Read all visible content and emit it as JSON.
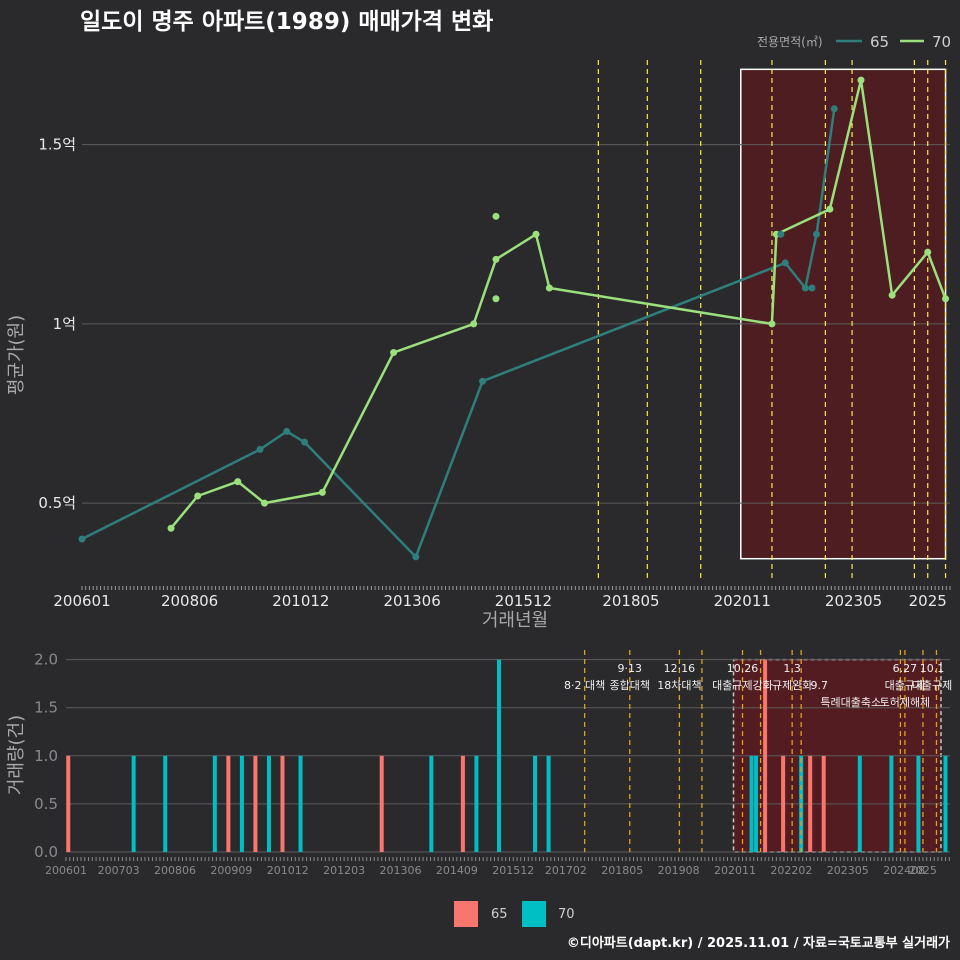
{
  "title": "일도이 명주 아파트(1989) 매매가격 변화",
  "caption": "©디아파트(dapt.kr) / 2025.11.01 / 자료=국토교통부 실거래가",
  "colors": {
    "s65": "#2e7f7c",
    "s70": "#9be07c",
    "bar65": "#f8766d",
    "bar70": "#00bfc4",
    "policy": "#ffe94a",
    "policy2": "#e0a01a",
    "shade": "#5a1a1e",
    "bg": "#2a2a2c"
  },
  "chart_data": [
    {
      "type": "line",
      "title": "일도이 명주 아파트(1989) 매매가격 변화",
      "xlabel": "거래년월",
      "ylabel": "평균가(원)",
      "x_ticks": [
        "200601",
        "200806",
        "201012",
        "201306",
        "201512",
        "201805",
        "202011",
        "202305",
        "2025"
      ],
      "y_ticks": [
        {
          "value": 0.5,
          "label": "0.5억"
        },
        {
          "value": 1.0,
          "label": "1억"
        },
        {
          "value": 1.5,
          "label": "1.5억"
        }
      ],
      "ylim": [
        0.28,
        1.75
      ],
      "legend_title": "전용면적(㎡)",
      "series": [
        {
          "name": "65",
          "points": [
            [
              2006.0,
              0.4
            ],
            [
              2010.0,
              0.65
            ],
            [
              2010.6,
              0.7
            ],
            [
              2011.0,
              0.67
            ],
            [
              2013.5,
              0.35
            ],
            [
              2015.0,
              0.84
            ],
            [
              2021.8,
              1.17
            ],
            [
              2022.25,
              1.1
            ],
            [
              2022.5,
              1.25
            ],
            [
              2022.9,
              1.6
            ]
          ]
        },
        {
          "name": "70",
          "points": [
            [
              2008.0,
              0.43
            ],
            [
              2008.6,
              0.52
            ],
            [
              2009.5,
              0.56
            ],
            [
              2010.1,
              0.5
            ],
            [
              2011.4,
              0.53
            ],
            [
              2013.0,
              0.92
            ],
            [
              2014.8,
              1.0
            ],
            [
              2015.3,
              1.18
            ],
            [
              2016.2,
              1.25
            ],
            [
              2016.5,
              1.1
            ],
            [
              2021.5,
              1.0
            ],
            [
              2021.6,
              1.25
            ],
            [
              2022.8,
              1.32
            ],
            [
              2023.5,
              1.68
            ],
            [
              2024.2,
              1.08
            ],
            [
              2025.0,
              1.2
            ],
            [
              2025.4,
              1.07
            ]
          ]
        }
      ],
      "extra_points": [
        {
          "series": "70",
          "x": 2015.3,
          "y": 1.3
        },
        {
          "series": "70",
          "x": 2015.3,
          "y": 1.07
        },
        {
          "series": "65",
          "x": 2021.7,
          "y": 1.25
        },
        {
          "series": "65",
          "x": 2022.4,
          "y": 1.1
        }
      ],
      "policy_lines": [
        2017.6,
        2018.7,
        2019.9,
        2021.5,
        2022.7,
        2023.3,
        2024.7,
        2025.0,
        2025.4
      ],
      "highlight_range": [
        2020.8,
        2025.4
      ]
    },
    {
      "type": "bar",
      "ylabel": "거래량(건)",
      "x_ticks": [
        "200601",
        "200703",
        "200806",
        "200909",
        "201012",
        "201203",
        "201306",
        "201409",
        "201512",
        "201702",
        "201805",
        "201908",
        "202011",
        "202202",
        "202305",
        "202408",
        "2025"
      ],
      "y_ticks": [
        {
          "value": 0.0,
          "label": "0.0"
        },
        {
          "value": 0.5,
          "label": "0.5"
        },
        {
          "value": 1.0,
          "label": "1.0"
        },
        {
          "value": 1.5,
          "label": "1.5"
        },
        {
          "value": 2.0,
          "label": "2.0"
        }
      ],
      "ylim": [
        0,
        2.1
      ],
      "legend": [
        "65",
        "70"
      ],
      "bars": [
        {
          "x": 2006.05,
          "series": "65",
          "value": 1
        },
        {
          "x": 2007.5,
          "series": "70",
          "value": 1
        },
        {
          "x": 2008.2,
          "series": "70",
          "value": 1
        },
        {
          "x": 2009.3,
          "series": "70",
          "value": 1
        },
        {
          "x": 2009.6,
          "series": "65",
          "value": 1
        },
        {
          "x": 2009.9,
          "series": "70",
          "value": 1
        },
        {
          "x": 2010.2,
          "series": "65",
          "value": 1
        },
        {
          "x": 2010.5,
          "series": "70",
          "value": 1
        },
        {
          "x": 2010.8,
          "series": "65",
          "value": 1
        },
        {
          "x": 2011.2,
          "series": "70",
          "value": 1
        },
        {
          "x": 2013.0,
          "series": "65",
          "value": 1
        },
        {
          "x": 2014.1,
          "series": "70",
          "value": 1
        },
        {
          "x": 2014.8,
          "series": "65",
          "value": 1
        },
        {
          "x": 2015.1,
          "series": "70",
          "value": 1
        },
        {
          "x": 2015.6,
          "series": "70",
          "value": 2
        },
        {
          "x": 2016.4,
          "series": "70",
          "value": 1
        },
        {
          "x": 2016.7,
          "series": "70",
          "value": 1
        },
        {
          "x": 2021.2,
          "series": "70",
          "value": 1
        },
        {
          "x": 2021.3,
          "series": "70",
          "value": 1
        },
        {
          "x": 2021.5,
          "series": "65",
          "value": 2
        },
        {
          "x": 2021.9,
          "series": "65",
          "value": 1
        },
        {
          "x": 2022.3,
          "series": "70",
          "value": 1
        },
        {
          "x": 2022.5,
          "series": "65",
          "value": 1
        },
        {
          "x": 2022.8,
          "series": "65",
          "value": 1
        },
        {
          "x": 2023.6,
          "series": "70",
          "value": 1
        },
        {
          "x": 2024.3,
          "series": "70",
          "value": 1
        },
        {
          "x": 2024.9,
          "series": "70",
          "value": 1
        },
        {
          "x": 2025.5,
          "series": "70",
          "value": 1
        }
      ],
      "policy_lines": [
        2017.5,
        2018.5,
        2019.6,
        2020.1,
        2021.0,
        2021.4,
        2022.1,
        2022.3,
        2024.5,
        2024.6,
        2025.0,
        2025.3
      ],
      "policy_labels": [
        {
          "x": 2017.5,
          "row": 1,
          "text": "8·2 대책"
        },
        {
          "x": 2018.5,
          "row": 0,
          "text": "9·13"
        },
        {
          "x": 2018.5,
          "row": 1,
          "text": "종합대책"
        },
        {
          "x": 2019.6,
          "row": 0,
          "text": "12·16"
        },
        {
          "x": 2019.6,
          "row": 1,
          "text": "18차대책"
        },
        {
          "x": 2021.0,
          "row": 0,
          "text": "10.26"
        },
        {
          "x": 2021.0,
          "row": 1,
          "text": "대출규제강화"
        },
        {
          "x": 2022.1,
          "row": 0,
          "text": "1.3"
        },
        {
          "x": 2022.1,
          "row": 1,
          "text": "규제완화"
        },
        {
          "x": 2022.7,
          "row": 1,
          "text": "9.7"
        },
        {
          "x": 2023.4,
          "row": 2,
          "text": "특례대출축소"
        },
        {
          "x": 2024.6,
          "row": 0,
          "text": "6.27"
        },
        {
          "x": 2024.6,
          "row": 1,
          "text": "대출규제"
        },
        {
          "x": 2024.6,
          "row": 2,
          "text": "토허제해제"
        },
        {
          "x": 2025.2,
          "row": 0,
          "text": "10.1"
        },
        {
          "x": 2025.2,
          "row": 1,
          "text": "대출규제"
        }
      ],
      "highlight_range": [
        2020.8,
        2025.4
      ]
    }
  ]
}
